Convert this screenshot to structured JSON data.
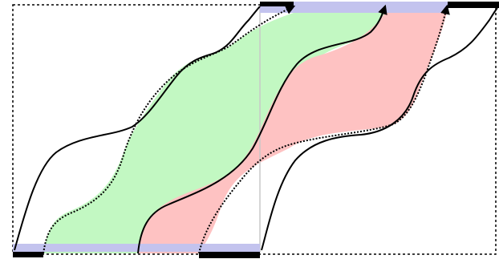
{
  "colors": {
    "background": "#ffffff",
    "frame_dashed": "#000000",
    "divider": "#c8c8c8",
    "band_lavender": "#c3c3ee",
    "band_black": "#000000",
    "region_green": "#c2f8c2",
    "region_red": "#fec2c2",
    "stroke": "#000000"
  },
  "icons": {
    "arrowhead": "triangle-arrowhead-icon"
  }
}
